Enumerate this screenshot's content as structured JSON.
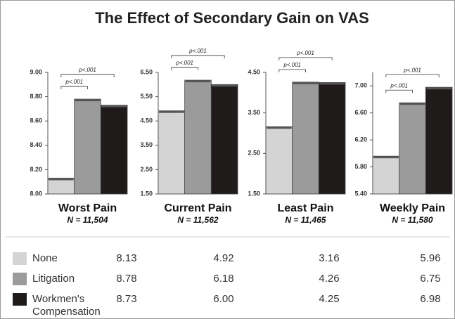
{
  "title": "The Effect of Secondary Gain on VAS",
  "legend": [
    {
      "name": "None",
      "color": "#d4d4d4"
    },
    {
      "name": "Litigation",
      "color": "#9b9b9b"
    },
    {
      "name": "Workmen's Compensation",
      "color": "#1f1b1b"
    }
  ],
  "chart_data": [
    {
      "type": "bar",
      "title": "Worst Pain",
      "subtitle": "N = 11,504",
      "values": [
        8.13,
        8.78,
        8.73
      ],
      "value_labels": [
        "8.13",
        "8.78",
        "8.73"
      ],
      "ylim": [
        8,
        9
      ],
      "yticks": [
        {
          "value": 8,
          "label": "8.00"
        },
        {
          "value": 8.2,
          "label": "8.20"
        },
        {
          "value": 8.4,
          "label": "8.40"
        },
        {
          "value": 8.6,
          "label": "8.60"
        },
        {
          "value": 8.8,
          "label": "8.80"
        },
        {
          "value": 9,
          "label": "9.00"
        }
      ],
      "annotations": [
        "p<.001",
        "p<.001"
      ]
    },
    {
      "type": "bar",
      "title": "Current Pain",
      "subtitle": "N = 11,562",
      "values": [
        4.92,
        6.18,
        6.0
      ],
      "value_labels": [
        "4.92",
        "6.18",
        "6.00"
      ],
      "ylim": [
        1.5,
        6.5
      ],
      "yticks": [
        {
          "value": 1.5,
          "label": "1.50"
        },
        {
          "value": 2.5,
          "label": "2.50"
        },
        {
          "value": 3.5,
          "label": "3.50"
        },
        {
          "value": 4.5,
          "label": "4.50"
        },
        {
          "value": 5.5,
          "label": "5.50"
        },
        {
          "value": 6.5,
          "label": "6.50"
        }
      ],
      "annotations": [
        "p<.001",
        "p<.001"
      ]
    },
    {
      "type": "bar",
      "title": "Least Pain",
      "subtitle": "N = 11,465",
      "values": [
        3.16,
        4.26,
        4.25
      ],
      "value_labels": [
        "3.16",
        "4.26",
        "4.25"
      ],
      "ylim": [
        1.5,
        4.5
      ],
      "yticks": [
        {
          "value": 1.5,
          "label": "1.50"
        },
        {
          "value": 2.5,
          "label": "2.50"
        },
        {
          "value": 3.5,
          "label": "3.50"
        },
        {
          "value": 4.5,
          "label": "4.50"
        }
      ],
      "annotations": [
        "p<.001",
        "p<.001"
      ]
    },
    {
      "type": "bar",
      "title": "Weekly Pain",
      "subtitle": "N = 11,580",
      "values": [
        5.96,
        6.75,
        6.98
      ],
      "value_labels": [
        "5.96",
        "6.75",
        "6.98"
      ],
      "ylim": [
        5.4,
        7.2
      ],
      "yticks": [
        {
          "value": 5.4,
          "label": "5.40"
        },
        {
          "value": 5.8,
          "label": "5.80"
        },
        {
          "value": 6.2,
          "label": "6.20"
        },
        {
          "value": 6.6,
          "label": "6.60"
        },
        {
          "value": 7,
          "label": "7.00"
        }
      ],
      "annotations": [
        "p<.001",
        "p<.001"
      ]
    }
  ]
}
